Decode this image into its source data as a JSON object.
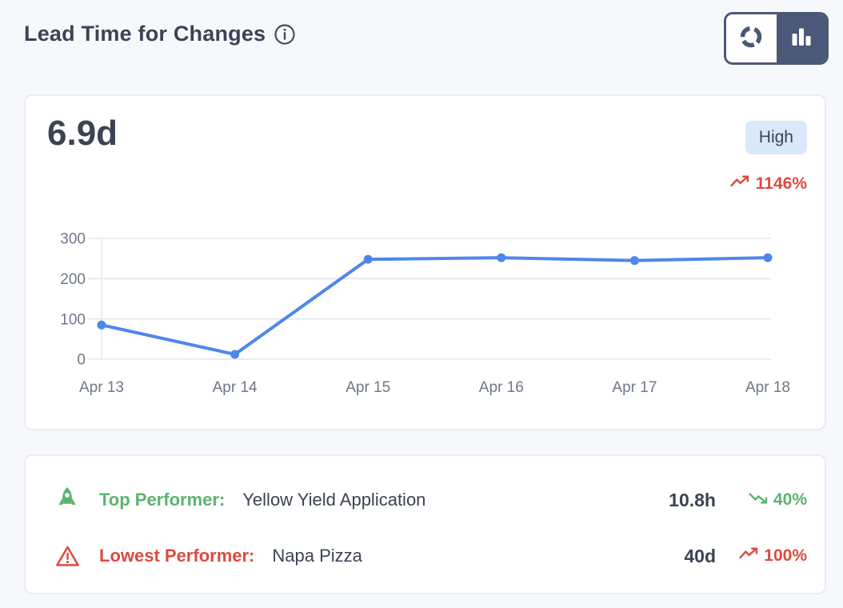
{
  "header": {
    "title": "Lead Time for Changes",
    "view_toggle": {
      "options": [
        {
          "name": "donut-view",
          "icon": "donut-chart-icon",
          "active": false
        },
        {
          "name": "bar-view",
          "icon": "bar-chart-icon",
          "active": true
        }
      ]
    }
  },
  "summary": {
    "value": "6.9d",
    "level_badge": "High",
    "trend": {
      "text": "1146%",
      "direction": "up"
    }
  },
  "chart_data": {
    "type": "line",
    "title": "Lead Time for Changes",
    "x": [
      "Apr 13",
      "Apr 14",
      "Apr 15",
      "Apr 16",
      "Apr 17",
      "Apr 18"
    ],
    "series": [
      {
        "name": "Lead time",
        "values": [
          85,
          12,
          248,
          252,
          245,
          252
        ]
      }
    ],
    "ylim": [
      0,
      300
    ],
    "yticks": [
      0,
      100,
      200,
      300
    ],
    "grid": true,
    "legend": false,
    "line_color": "#4e86ec"
  },
  "performers": {
    "top": {
      "label": "Top Performer:",
      "name": "Yellow Yield Application",
      "value": "10.8h",
      "trend": {
        "text": "40%",
        "direction": "down"
      }
    },
    "lowest": {
      "label": "Lowest Performer:",
      "name": "Napa Pizza",
      "value": "40d",
      "trend": {
        "text": "100%",
        "direction": "up"
      }
    }
  },
  "colors": {
    "accent_blue": "#4e86ec",
    "positive_green": "#5cb370",
    "negative_red": "#dc4b41",
    "badge_bg": "#d9e8fb",
    "text_dark": "#3b4354",
    "toggle_dark": "#4b5877",
    "grid_line": "#e4e6ec",
    "page_bg": "#f7f8fb"
  }
}
